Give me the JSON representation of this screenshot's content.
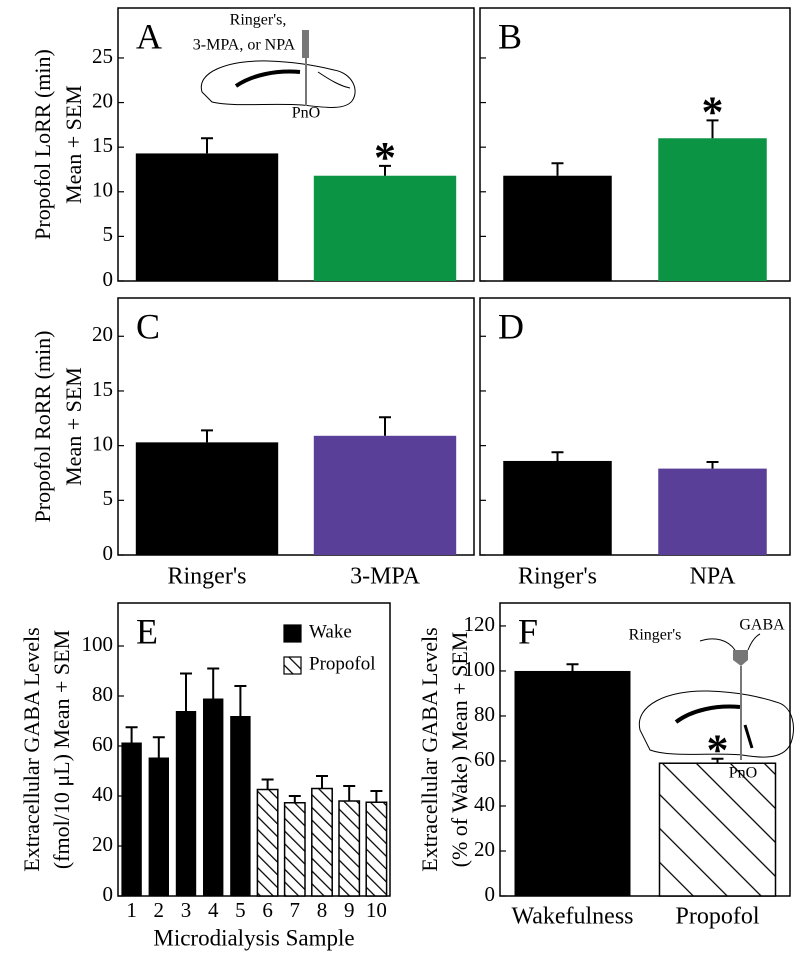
{
  "chart_data": [
    {
      "type": "bar",
      "panel_label": "A",
      "ylabel": [
        "Propofol LoRR (min)",
        "Mean + SEM"
      ],
      "categories": [
        null,
        null
      ],
      "values": [
        14.3,
        11.8
      ],
      "errors": [
        1.7,
        1.1
      ],
      "colors": [
        "#000000",
        "#0b9444"
      ],
      "significance_labels": [
        null,
        "*"
      ],
      "ylim": [
        0,
        30.6
      ],
      "yticks": [
        0,
        5,
        10,
        15,
        20,
        25
      ],
      "show_ytick_labels": true,
      "inset_labels": [
        "Ringer's,",
        "3-MPA, or NPA",
        "PnO"
      ]
    },
    {
      "type": "bar",
      "panel_label": "B",
      "categories": [
        null,
        null
      ],
      "values": [
        11.8,
        16.0
      ],
      "errors": [
        1.4,
        2.0
      ],
      "colors": [
        "#000000",
        "#0b9444"
      ],
      "significance_labels": [
        null,
        "*"
      ],
      "ylim": [
        0,
        30.6
      ],
      "yticks": [
        0,
        5,
        10,
        15,
        20,
        25
      ],
      "show_ytick_labels": false
    },
    {
      "type": "bar",
      "panel_label": "C",
      "ylabel": [
        "Propofol RoRR (min)",
        "Mean + SEM"
      ],
      "categories": [
        "Ringer's",
        "3-MPA"
      ],
      "values": [
        10.3,
        10.9
      ],
      "errors": [
        1.1,
        1.7
      ],
      "colors": [
        "#000000",
        "#5a3f98"
      ],
      "ylim": [
        0,
        23.5
      ],
      "yticks": [
        0,
        5,
        10,
        15,
        20
      ],
      "show_ytick_labels": true
    },
    {
      "type": "bar",
      "panel_label": "D",
      "categories": [
        "Ringer's",
        "NPA"
      ],
      "values": [
        8.6,
        7.9
      ],
      "errors": [
        0.8,
        0.6
      ],
      "colors": [
        "#000000",
        "#5a3f98"
      ],
      "ylim": [
        0,
        23.5
      ],
      "yticks": [
        0,
        5,
        10,
        15,
        20
      ],
      "show_ytick_labels": false
    },
    {
      "type": "bar",
      "panel_label": "E",
      "ylabel": [
        "Extracellular GABA Levels",
        "(fmol/10 μL) Mean + SEM"
      ],
      "xlabel": "Microdialysis Sample",
      "categories": [
        "1",
        "2",
        "3",
        "4",
        "5",
        "6",
        "7",
        "8",
        "9",
        "10"
      ],
      "series": [
        {
          "name": "Wake",
          "color": "#000000",
          "fill": "solid",
          "values": [
            61.4,
            55.4,
            74,
            79,
            72,
            null,
            null,
            null,
            null,
            null
          ],
          "errors": [
            6.1,
            8.1,
            15,
            12,
            12,
            null,
            null,
            null,
            null,
            null
          ]
        },
        {
          "name": "Propofol",
          "color": "#000000",
          "fill": "hatch",
          "values": [
            null,
            null,
            null,
            null,
            null,
            42.6,
            37.3,
            43,
            38,
            37.5
          ],
          "errors": [
            null,
            null,
            null,
            null,
            null,
            4,
            2.7,
            5,
            6,
            4.5
          ]
        }
      ],
      "legend": "upper right",
      "ylim": [
        0,
        117.2
      ],
      "yticks": [
        0,
        20,
        40,
        60,
        80,
        100
      ],
      "show_ytick_labels": true
    },
    {
      "type": "bar",
      "panel_label": "F",
      "ylabel": [
        "Extracellular GABA Levels",
        "(% of Wake) Mean + SEM"
      ],
      "categories": [
        "Wakefulness",
        "Propofol"
      ],
      "values": [
        100,
        59
      ],
      "errors": [
        3,
        2
      ],
      "colors": [
        "#000000",
        "#000000"
      ],
      "fills": [
        "solid",
        "hatch"
      ],
      "significance_labels": [
        null,
        "*"
      ],
      "ylim": [
        0,
        130.2
      ],
      "yticks": [
        0,
        20,
        40,
        60,
        80,
        100,
        120
      ],
      "show_ytick_labels": true,
      "inset_labels": [
        "Ringer's",
        "GABA",
        "PnO"
      ]
    }
  ]
}
